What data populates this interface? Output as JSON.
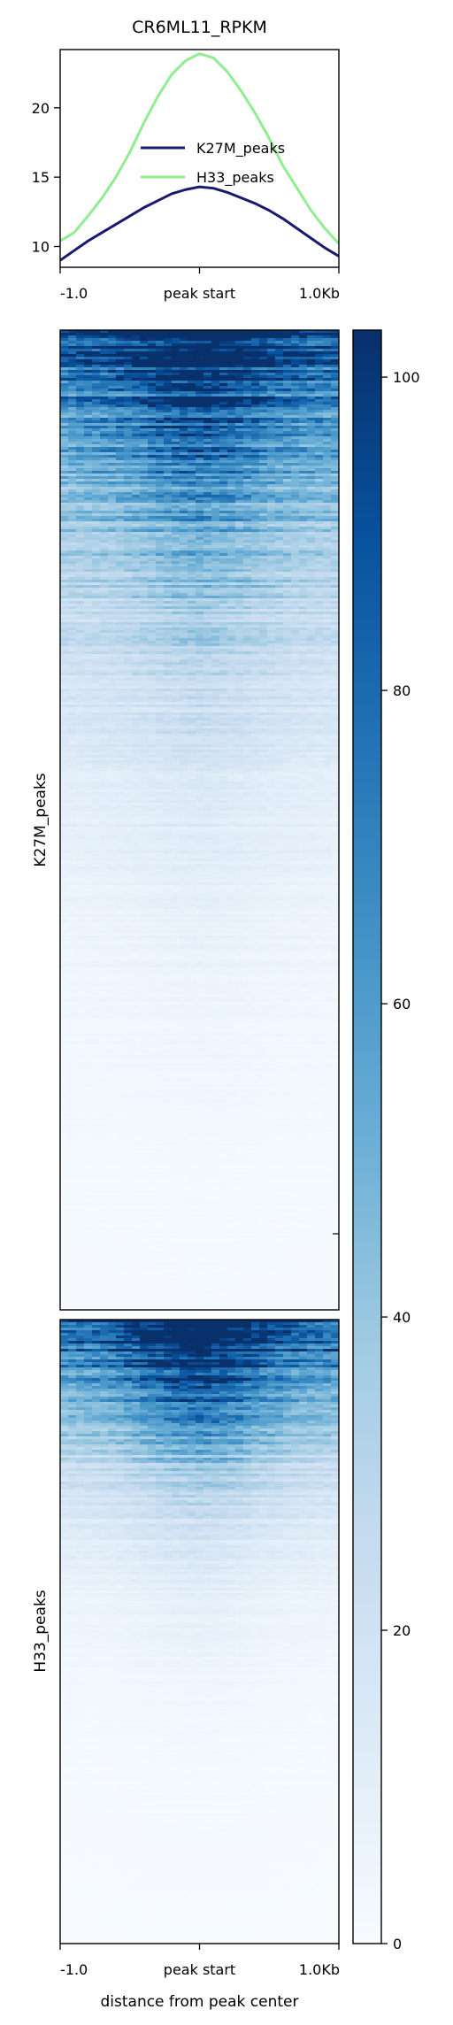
{
  "title": "CR6ML11_RPKM",
  "chart_data": [
    {
      "type": "line",
      "title": "CR6ML11_RPKM",
      "xlabel": "",
      "ylabel": "",
      "x_ticks": [
        "-1.0",
        "peak start",
        "1.0Kb"
      ],
      "x": [
        -1000,
        -900,
        -800,
        -700,
        -600,
        -500,
        -400,
        -300,
        -200,
        -100,
        0,
        100,
        200,
        300,
        400,
        500,
        600,
        700,
        800,
        900,
        1000
      ],
      "xlim": [
        -1000,
        1000
      ],
      "y_ticks": [
        10,
        15,
        20
      ],
      "ylim": [
        8.5,
        24.2
      ],
      "legend_position": "center-right",
      "series": [
        {
          "name": "K27M_peaks",
          "color": "#191970",
          "values": [
            9.0,
            9.7,
            10.4,
            11.0,
            11.6,
            12.2,
            12.8,
            13.3,
            13.8,
            14.1,
            14.3,
            14.2,
            13.9,
            13.5,
            13.1,
            12.6,
            12.0,
            11.3,
            10.6,
            9.9,
            9.3
          ]
        },
        {
          "name": "H33_peaks",
          "color": "#90ee90",
          "values": [
            10.4,
            11.0,
            12.2,
            13.5,
            15.0,
            16.8,
            18.9,
            20.8,
            22.4,
            23.4,
            23.9,
            23.6,
            22.6,
            21.2,
            19.6,
            17.8,
            15.8,
            14.2,
            12.6,
            11.3,
            10.2
          ]
        }
      ]
    },
    {
      "type": "heatmap",
      "ylabel": "K27M_peaks",
      "x_ticks": [],
      "value_profile": [
        92,
        70,
        52,
        38,
        28,
        20,
        14,
        10,
        7,
        5,
        3.5,
        2.5,
        1.5,
        1.0,
        0.6
      ],
      "center_boost": 0.35
    },
    {
      "type": "heatmap",
      "ylabel": "H33_peaks",
      "xlabel": "distance from peak center",
      "x_ticks": [
        "-1.0",
        "peak start",
        "1.0Kb"
      ],
      "value_profile": [
        96,
        72,
        48,
        30,
        18,
        11,
        7,
        4.5,
        3,
        2,
        1.2,
        0.8,
        0.5,
        0.3,
        0.2
      ],
      "center_boost": 0.55
    },
    {
      "type": "colorbar",
      "colormap": "Blues",
      "colors": [
        "#f7fbff",
        "#deebf7",
        "#c6dbef",
        "#9ecae1",
        "#6baed6",
        "#4292c6",
        "#2171b5",
        "#08519c",
        "#08306b"
      ],
      "vmin": 0,
      "vmax": 103,
      "ticks": [
        0,
        20,
        40,
        60,
        80,
        100
      ]
    }
  ]
}
